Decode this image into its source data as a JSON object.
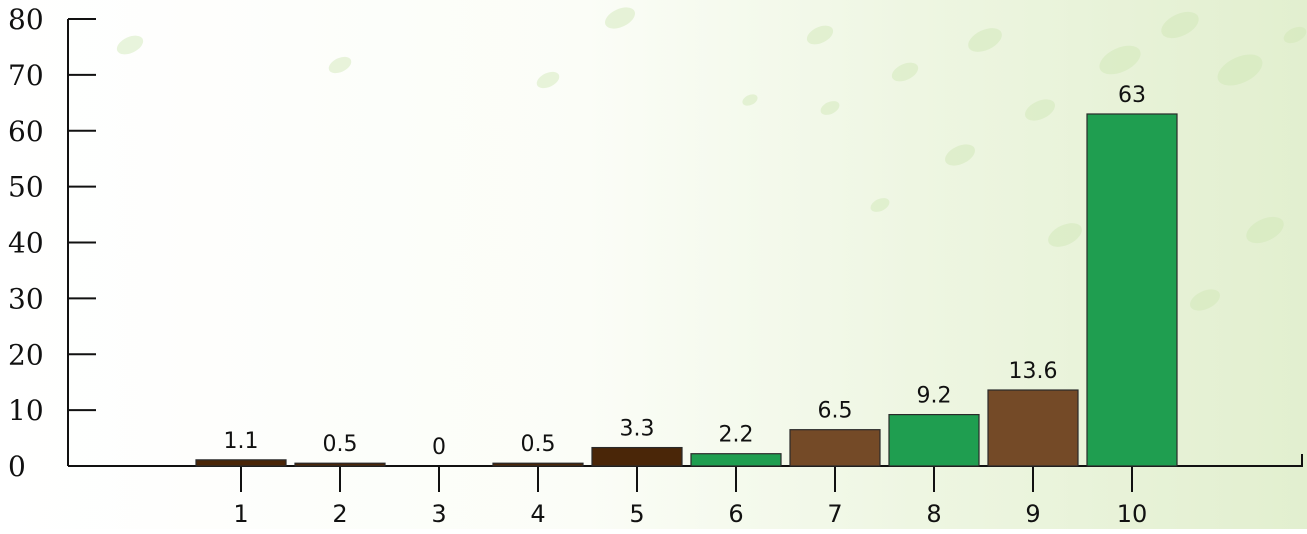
{
  "chart_data": {
    "type": "bar",
    "categories": [
      "1",
      "2",
      "3",
      "4",
      "5",
      "6",
      "7",
      "8",
      "9",
      "10"
    ],
    "values": [
      1.1,
      0.5,
      0,
      0.5,
      3.3,
      2.2,
      6.5,
      9.2,
      13.6,
      63
    ],
    "value_labels": [
      "1.1",
      "0.5",
      "0",
      "0.5",
      "3.3",
      "2.2",
      "6.5",
      "9.2",
      "13.6",
      "63"
    ],
    "bar_colors": [
      "#4a2608",
      "#4a2608",
      "#4a2608",
      "#4a2608",
      "#4a2608",
      "#1f9e50",
      "#744a27",
      "#1f9e50",
      "#744a27",
      "#1f9e50"
    ],
    "yticks": [
      0,
      10,
      20,
      30,
      40,
      50,
      60,
      70,
      80
    ],
    "ylim": [
      0,
      80
    ],
    "title": "",
    "xlabel": "",
    "ylabel": "",
    "grid": false,
    "legend": "none"
  },
  "colors": {
    "axis": "#111111",
    "bar_outline": "#2a2a2a",
    "bg_spot": "#cfe6b4"
  }
}
